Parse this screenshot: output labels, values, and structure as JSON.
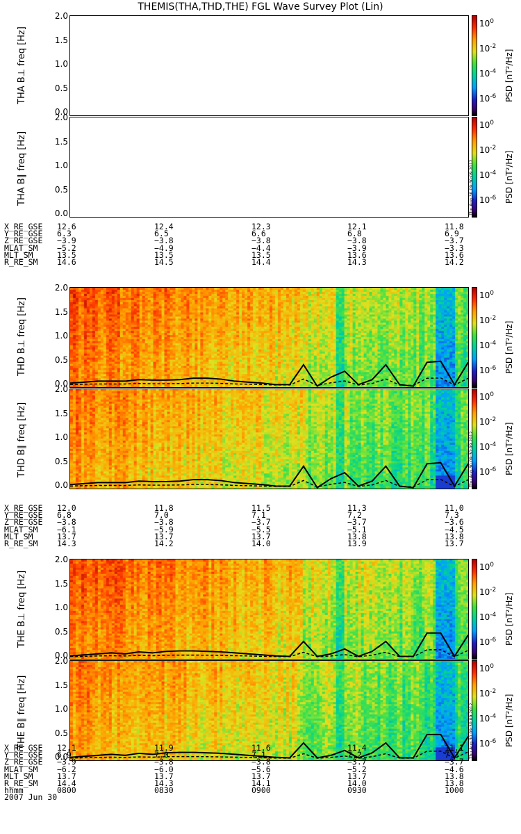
{
  "title": "THEMIS(THA,THD,THE) FGL Wave Survey Plot (Lin)",
  "timestamp": "Thu Aug 30 09:30:09 2012",
  "colorbar": {
    "label": "PSD [nT²/Hz]",
    "ticks": [
      {
        "base": "10",
        "exp": "0"
      },
      {
        "base": "10",
        "exp": "-2"
      },
      {
        "base": "10",
        "exp": "-4"
      },
      {
        "base": "10",
        "exp": "-6"
      }
    ]
  },
  "yticks": [
    "2.0",
    "1.5",
    "1.0",
    "0.5",
    "0.0"
  ],
  "chart_data": [
    {
      "type": "heatmap",
      "panel": "THA B⊥",
      "ylabel": "THA B⊥ freq [Hz]",
      "ylim": [
        0,
        2.0
      ],
      "has_data": false
    },
    {
      "type": "heatmap",
      "panel": "THA B∥",
      "ylabel": "THA B∥ freq [Hz]",
      "ylim": [
        0,
        2.0
      ],
      "has_data": false
    },
    {
      "type": "heatmap",
      "panel": "THD B⊥",
      "ylabel": "THD B⊥ freq [Hz]",
      "ylim": [
        0,
        2.0
      ],
      "has_data": true,
      "fce_line": [
        0.08,
        0.1,
        0.12,
        0.12,
        0.12,
        0.15,
        0.14,
        0.14,
        0.15,
        0.18,
        0.18,
        0.16,
        0.12,
        0.1,
        0.08,
        0.05,
        0.05,
        0.45,
        0.02,
        0.2,
        0.32,
        0.05,
        0.15,
        0.45,
        0.05,
        0.02,
        0.5,
        0.52,
        0.05,
        0.5
      ]
    },
    {
      "type": "heatmap",
      "panel": "THD B∥",
      "ylabel": "THD B∥ freq [Hz]",
      "ylim": [
        0,
        2.0
      ],
      "has_data": true,
      "fce_line": [
        0.08,
        0.1,
        0.12,
        0.12,
        0.12,
        0.15,
        0.14,
        0.14,
        0.15,
        0.18,
        0.18,
        0.16,
        0.12,
        0.1,
        0.08,
        0.05,
        0.05,
        0.45,
        0.02,
        0.2,
        0.32,
        0.05,
        0.15,
        0.45,
        0.05,
        0.02,
        0.5,
        0.52,
        0.05,
        0.5
      ]
    },
    {
      "type": "heatmap",
      "panel": "THE B⊥",
      "ylabel": "THE B⊥ freq [Hz]",
      "ylim": [
        0,
        2.0
      ],
      "has_data": true,
      "fce_line": [
        0.06,
        0.08,
        0.1,
        0.12,
        0.1,
        0.14,
        0.12,
        0.15,
        0.16,
        0.16,
        0.15,
        0.14,
        0.12,
        0.1,
        0.08,
        0.06,
        0.05,
        0.35,
        0.05,
        0.1,
        0.2,
        0.05,
        0.15,
        0.35,
        0.05,
        0.05,
        0.52,
        0.52,
        0.05,
        0.48
      ]
    },
    {
      "type": "heatmap",
      "panel": "THE B∥",
      "ylabel": "THE B∥ freq [Hz]",
      "ylim": [
        0,
        2.0
      ],
      "has_data": true,
      "fce_line": [
        0.06,
        0.08,
        0.1,
        0.12,
        0.1,
        0.14,
        0.12,
        0.15,
        0.16,
        0.16,
        0.15,
        0.14,
        0.12,
        0.1,
        0.08,
        0.06,
        0.05,
        0.35,
        0.05,
        0.1,
        0.2,
        0.05,
        0.15,
        0.35,
        0.05,
        0.05,
        0.52,
        0.52,
        0.05,
        0.48
      ]
    }
  ],
  "ephemeris": [
    {
      "labels": [
        "X_RE_GSE",
        "Y_RE_GSE",
        "Z_RE_GSE",
        "MLAT_SM",
        "MLT_SM",
        "R_RE_SM"
      ],
      "values": [
        [
          "12.6",
          "12.4",
          "12.3",
          "12.1",
          "11.8"
        ],
        [
          "6.3",
          "6.5",
          "6.6",
          "6.8",
          "6.9"
        ],
        [
          "−3.9",
          "−3.8",
          "−3.8",
          "−3.8",
          "−3.7"
        ],
        [
          "−5.2",
          "−4.9",
          "−4.4",
          "−3.9",
          "−3.3"
        ],
        [
          "13.5",
          "13.5",
          "13.5",
          "13.6",
          "13.6"
        ],
        [
          "14.6",
          "14.5",
          "14.4",
          "14.3",
          "14.2"
        ]
      ]
    },
    {
      "labels": [
        "X_RE_GSE",
        "Y_RE_GSE",
        "Z_RE_GSE",
        "MLAT_SM",
        "MLT_SM",
        "R_RE_SM"
      ],
      "values": [
        [
          "12.0",
          "11.8",
          "11.5",
          "11.3",
          "11.0"
        ],
        [
          "6.8",
          "7.0",
          "7.1",
          "7.2",
          "7.3"
        ],
        [
          "−3.8",
          "−3.8",
          "−3.7",
          "−3.7",
          "−3.6"
        ],
        [
          "−6.1",
          "−5.9",
          "−5.5",
          "−5.1",
          "−4.5"
        ],
        [
          "13.7",
          "13.7",
          "13.7",
          "13.8",
          "13.8"
        ],
        [
          "14.3",
          "14.2",
          "14.0",
          "13.9",
          "13.7"
        ]
      ]
    },
    {
      "labels": [
        "X_RE_GSE",
        "Y_RE_GSE",
        "Z_RE_GSE",
        "MLAT_SM",
        "MLT_SM",
        "R_RE_SM",
        "hhmm",
        "2007 Jun 30"
      ],
      "values": [
        [
          "12.1",
          "11.9",
          "11.6",
          "11.4",
          "11.1"
        ],
        [
          "6.9",
          "7.0",
          "7.1",
          "7.2",
          "7.3"
        ],
        [
          "−3.9",
          "−3.8",
          "−3.8",
          "−3.7",
          "−3.7"
        ],
        [
          "−6.2",
          "−6.0",
          "−5.6",
          "−5.2",
          "−4.6"
        ],
        [
          "13.7",
          "13.7",
          "13.7",
          "13.7",
          "13.8"
        ],
        [
          "14.4",
          "14.3",
          "14.1",
          "14.0",
          "13.8"
        ],
        [
          "0800",
          "0830",
          "0900",
          "0930",
          "1000"
        ],
        [
          "",
          "",
          "",
          "",
          ""
        ]
      ]
    }
  ]
}
